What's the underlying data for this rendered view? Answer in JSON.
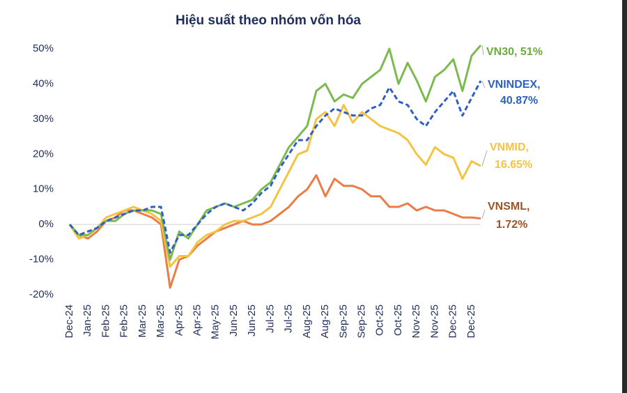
{
  "chart_data": {
    "type": "line",
    "title": "Hiệu suất theo nhóm vốn hóa",
    "categories": [
      "Dec-24",
      null,
      "Jan-25",
      null,
      "Feb-25",
      null,
      "Feb-25",
      null,
      "Mar-25",
      null,
      "Mar-25",
      null,
      "Apr-25",
      null,
      "Apr-25",
      null,
      "May-25",
      null,
      "Jun-25",
      null,
      "Jun-25",
      null,
      "Jul-25",
      null,
      "Jul-25",
      null,
      "Aug-25",
      null,
      "Aug-25",
      null,
      "Sep-25",
      null,
      "Sep-25",
      null,
      "Oct-25",
      null,
      "Oct-25",
      null,
      "Nov-25",
      null,
      "Nov-25",
      null,
      "Dec-25",
      null,
      "Dec-25",
      null
    ],
    "ylim": [
      -20,
      50
    ],
    "yticks": [
      {
        "value": -20,
        "label": "-20%"
      },
      {
        "value": -10,
        "label": "-10%"
      },
      {
        "value": 0,
        "label": "0%"
      },
      {
        "value": 10,
        "label": "10%"
      },
      {
        "value": 20,
        "label": "20%"
      },
      {
        "value": 30,
        "label": "30%"
      },
      {
        "value": 40,
        "label": "40%"
      },
      {
        "value": 50,
        "label": "50%"
      }
    ],
    "series": [
      {
        "label": [
          "VNSML,",
          "1.72%"
        ],
        "color": "#ec7c45",
        "label_color": "#9a5426",
        "dashed": false,
        "values": [
          0,
          -3,
          -4,
          -2,
          1,
          2,
          4,
          4,
          3,
          2,
          0,
          -18,
          -10,
          -9,
          -6,
          -4,
          -2,
          -1,
          0,
          1,
          0,
          0,
          1,
          3,
          5,
          8,
          10,
          14,
          8,
          13,
          11,
          11,
          10,
          8,
          8,
          5,
          5,
          6,
          4,
          5,
          4,
          4,
          3,
          2,
          2,
          1.72
        ]
      },
      {
        "label": [
          "VNMID,",
          "16.65%"
        ],
        "color": "#f5c242",
        "label_color": "#f5c242",
        "dashed": false,
        "values": [
          0,
          -4,
          -3,
          -1,
          2,
          3,
          4,
          5,
          4,
          3,
          1,
          -12,
          -9,
          -9,
          -5,
          -3,
          -2,
          0,
          1,
          1,
          2,
          3,
          5,
          10,
          15,
          20,
          21,
          30,
          32,
          28,
          34,
          29,
          32,
          30,
          28,
          27,
          26,
          24,
          20,
          17,
          22,
          20,
          19,
          13,
          18,
          16.65
        ]
      },
      {
        "label": [
          "VN30, 51%"
        ],
        "color": "#7cba4f",
        "label_color": "#6aac3c",
        "dashed": false,
        "values": [
          0,
          -3,
          -3,
          -1,
          1,
          1,
          3,
          4,
          4,
          4,
          3,
          -10,
          -2,
          -4,
          0,
          4,
          5,
          6,
          5,
          6,
          7,
          10,
          12,
          17,
          22,
          25,
          28,
          38,
          40,
          35,
          37,
          36,
          40,
          42,
          44,
          50,
          40,
          46,
          41,
          35,
          42,
          44,
          47,
          38,
          48,
          51
        ]
      },
      {
        "label": [
          "VNINDEX,",
          "40.87%"
        ],
        "color": "#2f5fc4",
        "label_color": "#2f5fc4",
        "dashed": true,
        "values": [
          0,
          -3,
          -2,
          -1,
          1,
          2,
          3,
          4,
          4,
          5,
          5,
          -8,
          -3,
          -3,
          0,
          3,
          5,
          6,
          5,
          4,
          6,
          9,
          11,
          16,
          20,
          24,
          24,
          28,
          31,
          33,
          32,
          31,
          31,
          33,
          34,
          39,
          35,
          34,
          30,
          28,
          32,
          35,
          38,
          31,
          36,
          40.87
        ]
      }
    ]
  }
}
